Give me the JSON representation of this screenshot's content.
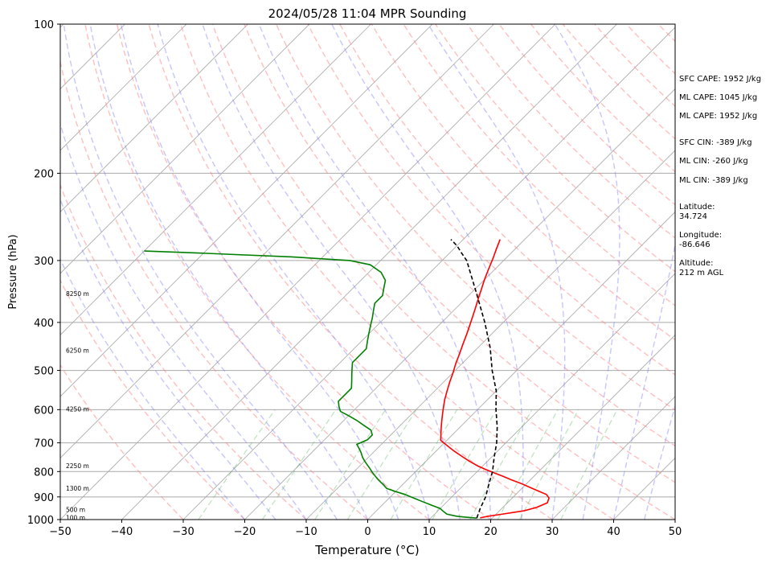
{
  "chart_data": {
    "type": "line",
    "title": "2024/05/28 11:04 MPR Sounding",
    "xlabel": "Temperature (°C)",
    "ylabel": "Pressure (hPa)",
    "xlim": [
      -50,
      50
    ],
    "ylim": [
      1000,
      100
    ],
    "y_scale": "log",
    "x_ticks": [
      "−50",
      "−40",
      "−30",
      "−20",
      "−10",
      "0",
      "10",
      "20",
      "30",
      "40",
      "50"
    ],
    "y_ticks": [
      "100",
      "200",
      "300",
      "400",
      "500",
      "600",
      "700",
      "800",
      "900",
      "1000"
    ],
    "height_labels": [
      {
        "p": 350,
        "label": "8250 m"
      },
      {
        "p": 455,
        "label": "6250 m"
      },
      {
        "p": 598,
        "label": "4250 m"
      },
      {
        "p": 778,
        "label": "2250 m"
      },
      {
        "p": 865,
        "label": "1300 m"
      },
      {
        "p": 955,
        "label": "500 m"
      },
      {
        "p": 990,
        "label": "100 m"
      }
    ],
    "series": [
      {
        "role": "temperature",
        "color": "#ff0000",
        "points": [
          [
            18.0,
            992
          ],
          [
            19,
            985
          ],
          [
            21,
            975
          ],
          [
            24,
            960
          ],
          [
            25.5,
            945
          ],
          [
            26.5,
            925
          ],
          [
            26,
            905
          ],
          [
            25,
            890
          ],
          [
            23,
            875
          ],
          [
            21,
            860
          ],
          [
            19,
            845
          ],
          [
            17,
            832
          ],
          [
            15,
            818
          ],
          [
            13,
            805
          ],
          [
            11,
            792
          ],
          [
            9,
            778
          ],
          [
            7,
            762
          ],
          [
            5,
            745
          ],
          [
            3,
            728
          ],
          [
            1,
            710
          ],
          [
            -1,
            692
          ],
          [
            -2,
            672
          ],
          [
            -3,
            652
          ],
          [
            -4,
            632
          ],
          [
            -5,
            612
          ],
          [
            -6,
            592
          ],
          [
            -7,
            572
          ],
          [
            -8,
            550
          ],
          [
            -9,
            528
          ],
          [
            -10,
            505
          ],
          [
            -11,
            485
          ],
          [
            -12,
            463
          ],
          [
            -13,
            443
          ],
          [
            -14,
            423
          ],
          [
            -15,
            405
          ],
          [
            -16,
            388
          ],
          [
            -17,
            372
          ],
          [
            -18,
            357
          ],
          [
            -19,
            342
          ],
          [
            -20,
            328
          ],
          [
            -21,
            313
          ],
          [
            -22,
            298
          ],
          [
            -23,
            285
          ],
          [
            -24,
            272
          ]
        ]
      },
      {
        "role": "dewpoint",
        "color": "#008000",
        "points": [
          [
            17.5,
            993
          ],
          [
            16,
            990
          ],
          [
            14,
            985
          ],
          [
            12,
            975
          ],
          [
            11,
            963
          ],
          [
            10,
            950
          ],
          [
            8,
            935
          ],
          [
            6,
            920
          ],
          [
            4,
            905
          ],
          [
            2,
            890
          ],
          [
            0,
            878
          ],
          [
            -2,
            865
          ],
          [
            -3,
            852
          ],
          [
            -4,
            840
          ],
          [
            -5,
            828
          ],
          [
            -6,
            815
          ],
          [
            -7,
            802
          ],
          [
            -8,
            788
          ],
          [
            -9,
            775
          ],
          [
            -10,
            762
          ],
          [
            -11,
            748
          ],
          [
            -12,
            732
          ],
          [
            -13,
            718
          ],
          [
            -14,
            705
          ],
          [
            -13,
            690
          ],
          [
            -13,
            675
          ],
          [
            -14,
            660
          ],
          [
            -16,
            645
          ],
          [
            -18,
            630
          ],
          [
            -20,
            617
          ],
          [
            -22,
            605
          ],
          [
            -23,
            592
          ],
          [
            -24,
            577
          ],
          [
            -24,
            560
          ],
          [
            -24,
            543
          ],
          [
            -25,
            527
          ],
          [
            -26,
            512
          ],
          [
            -27,
            497
          ],
          [
            -28,
            482
          ],
          [
            -28,
            467
          ],
          [
            -28,
            452
          ],
          [
            -29,
            437
          ],
          [
            -30,
            422
          ],
          [
            -31,
            407
          ],
          [
            -32,
            392
          ],
          [
            -33,
            379
          ],
          [
            -34,
            366
          ],
          [
            -34,
            353
          ],
          [
            -35,
            341
          ],
          [
            -36,
            329
          ],
          [
            -38,
            317
          ],
          [
            -41,
            306
          ],
          [
            -45,
            300
          ],
          [
            -55,
            295
          ],
          [
            -70,
            290
          ],
          [
            -80,
            287
          ]
        ]
      },
      {
        "role": "parcel",
        "color": "#000000",
        "points": [
          [
            17.5,
            993
          ],
          [
            16.5,
            950
          ],
          [
            15.5,
            900
          ],
          [
            14,
            850
          ],
          [
            12.5,
            800
          ],
          [
            10.5,
            750
          ],
          [
            8.5,
            700
          ],
          [
            6,
            650
          ],
          [
            3,
            600
          ],
          [
            0,
            550
          ],
          [
            -4,
            500
          ],
          [
            -8,
            450
          ],
          [
            -13,
            400
          ],
          [
            -19,
            350
          ],
          [
            -26,
            300
          ],
          [
            -28,
            290
          ],
          [
            -30,
            280
          ],
          [
            -32,
            272
          ]
        ]
      }
    ],
    "dry_adiabats_C": [
      -30,
      -20,
      -10,
      0,
      10,
      20,
      30,
      40,
      50,
      60,
      70,
      80,
      90,
      100,
      110,
      120,
      130,
      140,
      150,
      160,
      170,
      180,
      190
    ],
    "moist_adiabats_C": [
      -20,
      -15,
      -10,
      -5,
      0,
      5,
      10,
      15,
      20,
      25,
      30,
      35,
      40,
      45
    ],
    "mixing_ratios_gkg": [
      0.4,
      1,
      2,
      3,
      5,
      8,
      12,
      16,
      20,
      30
    ],
    "isotherm_spacing_C": 10,
    "colors": {
      "isotherms": "#a9a9a9",
      "dry_adiabats": "#ff8080",
      "moist_adiabats": "#8080ff",
      "mixing_ratio": "#4caf50",
      "temperature": "#ff0000",
      "dewpoint": "#008000",
      "parcel": "#000000"
    }
  },
  "sidebar": {
    "sfc_cape": "SFC CAPE: 1952 J/kg",
    "ml_cape_1": "ML CAPE: 1045 J/kg",
    "ml_cape_2": "ML CAPE: 1952 J/kg",
    "sfc_cin": "SFC CIN: -389 J/kg",
    "ml_cin_1": "ML CIN: -260 J/kg",
    "ml_cin_2": "ML CIN: -389 J/kg",
    "latitude": "Latitude:\n34.724",
    "longitude": "Longitude:\n-86.646",
    "altitude": "Altitude:\n212 m AGL"
  }
}
